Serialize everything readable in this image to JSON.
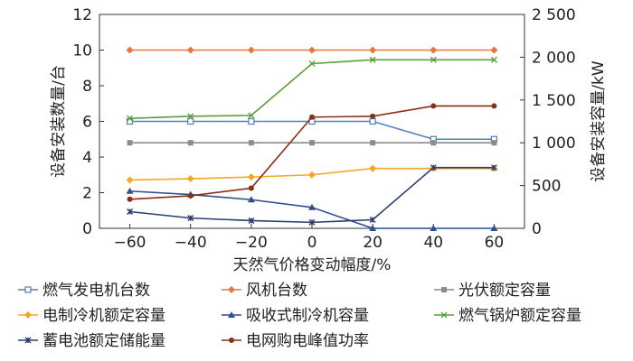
{
  "chart_data": {
    "type": "line",
    "xlabel": "天然气价格变动幅度/%",
    "ylabel_left": "设备安装数量/台",
    "ylabel_right": "设备安装容量/kW",
    "x": [
      -60,
      -40,
      -20,
      0,
      20,
      40,
      60
    ],
    "x_tick_labels": [
      "−60",
      "−40",
      "−20",
      "0",
      "20",
      "40",
      "60"
    ],
    "xlim": [
      -70,
      70
    ],
    "ylim_left": [
      0,
      12
    ],
    "ylim_right": [
      0,
      2500
    ],
    "left_ticks": [
      0,
      2,
      4,
      6,
      8,
      10,
      12
    ],
    "left_tick_labels": [
      "0",
      "2",
      "4",
      "6",
      "8",
      "10",
      "12"
    ],
    "right_ticks": [
      0,
      500,
      1000,
      1500,
      2000,
      2500
    ],
    "right_tick_labels": [
      "0",
      "500",
      "1 000",
      "1 500",
      "2 000",
      "2 500"
    ],
    "grid": false,
    "legend_position": "bottom",
    "series": [
      {
        "name": "燃气发电机台数",
        "axis": "left",
        "color": "#4f81bd",
        "marker": "square-open",
        "values": [
          6,
          6,
          6,
          6,
          6,
          5,
          5
        ]
      },
      {
        "name": "风机台数",
        "axis": "left",
        "color": "#e8763a",
        "marker": "diamond",
        "values": [
          10,
          10,
          10,
          10,
          10,
          10,
          10
        ]
      },
      {
        "name": "光伏额定容量",
        "axis": "right",
        "color": "#8c8c8c",
        "marker": "square",
        "values": [
          1000,
          1000,
          1000,
          1000,
          1000,
          1000,
          1000
        ]
      },
      {
        "name": "电制冷机额定容量",
        "axis": "right",
        "color": "#f5a623",
        "marker": "diamond",
        "values": [
          565,
          580,
          600,
          625,
          700,
          700,
          700
        ]
      },
      {
        "name": "吸收式制冷机容量",
        "axis": "right",
        "color": "#2f4f8f",
        "marker": "triangle",
        "values": [
          435,
          395,
          335,
          245,
          0,
          0,
          0
        ]
      },
      {
        "name": "燃气锅炉额定容量",
        "axis": "right",
        "color": "#5a9e3a",
        "marker": "x",
        "values": [
          1285,
          1310,
          1320,
          1925,
          1970,
          1970,
          1970
        ]
      },
      {
        "name": "蓄电池额定储能量",
        "axis": "right",
        "color": "#2c3e6b",
        "marker": "star",
        "values": [
          195,
          120,
          90,
          70,
          100,
          710,
          710
        ]
      },
      {
        "name": "电网购电峰值功率",
        "axis": "right",
        "color": "#8b2e16",
        "marker": "circle",
        "values": [
          340,
          380,
          470,
          1300,
          1310,
          1430,
          1430
        ]
      }
    ]
  }
}
